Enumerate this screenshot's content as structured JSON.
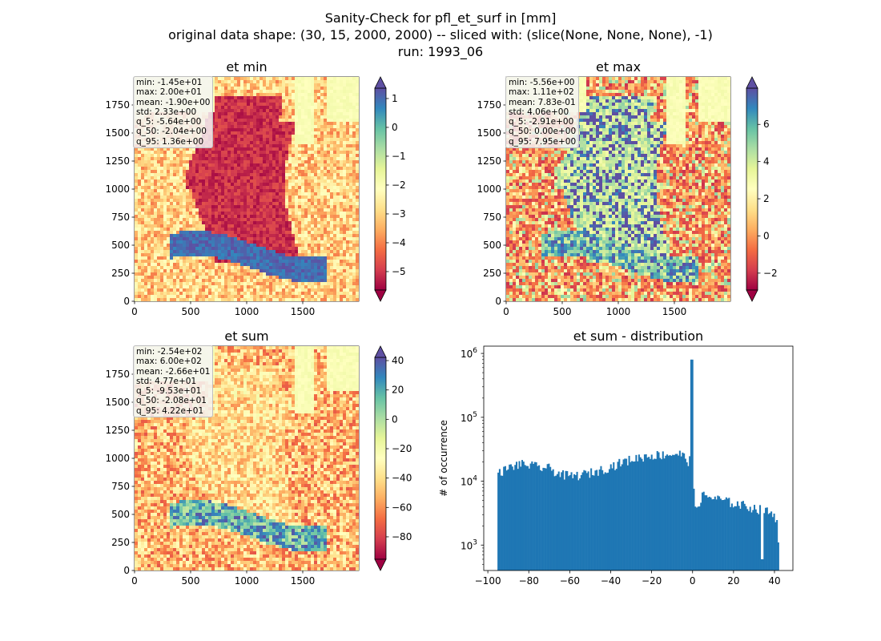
{
  "suptitle": {
    "line1": "Sanity-Check for pfl_et_surf in [mm]",
    "line2": "original data shape: (30, 15, 2000, 2000) -- sliced with: (slice(None, None, None), -1)",
    "line3": "run: 1993_06"
  },
  "panels": {
    "et_min": {
      "title": "et min",
      "x_ticks": [
        0,
        500,
        1000,
        1500
      ],
      "y_ticks": [
        0,
        250,
        500,
        750,
        1000,
        1250,
        1500,
        1750
      ],
      "colorbar_ticks": [
        1,
        0,
        -1,
        -2,
        -3,
        -4,
        -5
      ],
      "colorbar_range": [
        -5.64,
        1.36
      ],
      "colormap": "Spectral",
      "stats": [
        "min: -1.45e+01",
        "max: 2.00e+01",
        "mean: -1.90e+00",
        "std: 2.33e+00",
        "q_5: -5.64e+00",
        "q_50: -2.04e+00",
        "q_95: 1.36e+00"
      ]
    },
    "et_max": {
      "title": "et max",
      "x_ticks": [
        0,
        500,
        1000,
        1500
      ],
      "y_ticks": [
        0,
        250,
        500,
        750,
        1000,
        1250,
        1500,
        1750
      ],
      "colorbar_ticks": [
        6,
        4,
        2,
        0,
        -2
      ],
      "colorbar_range": [
        -2.91,
        7.95
      ],
      "colormap": "Spectral",
      "stats": [
        "min: -5.56e+00",
        "max: 1.11e+02",
        "mean: 7.83e-01",
        "std: 4.06e+00",
        "q_5: -2.91e+00",
        "q_50: 0.00e+00",
        "q_95: 7.95e+00"
      ]
    },
    "et_sum": {
      "title": "et sum",
      "x_ticks": [
        0,
        500,
        1000,
        1500
      ],
      "y_ticks": [
        0,
        250,
        500,
        750,
        1000,
        1250,
        1500,
        1750
      ],
      "colorbar_ticks": [
        40,
        20,
        0,
        -20,
        -40,
        -60,
        -80
      ],
      "colorbar_range": [
        -95.3,
        42.2
      ],
      "colormap": "Spectral",
      "stats": [
        "min: -2.54e+02",
        "max: 6.00e+02",
        "mean: -2.66e+01",
        "std: 4.77e+01",
        "q_5: -9.53e+01",
        "q_50: -2.08e+01",
        "q_95: 4.22e+01"
      ]
    }
  },
  "chart_data": {
    "type": "bar",
    "title": "et sum - distribution",
    "xlabel": "",
    "ylabel": "# of occurrence",
    "yscale": "log",
    "xlim": [
      -102,
      49
    ],
    "ylim": [
      400,
      1300000
    ],
    "x_ticks": [
      -100,
      -80,
      -60,
      -40,
      -20,
      0,
      20,
      40
    ],
    "y_ticks": [
      1000,
      10000,
      100000,
      1000000
    ],
    "y_tick_labels": [
      "10^3",
      "10^4",
      "10^5",
      "10^6"
    ],
    "color": "#1f77b4",
    "bin_range": [
      -95.3,
      42.2
    ],
    "anchors": [
      [
        -95.3,
        11500
      ],
      [
        -94,
        14000
      ],
      [
        -90,
        16000
      ],
      [
        -85,
        18500
      ],
      [
        -80,
        18000
      ],
      [
        -75,
        16500
      ],
      [
        -70,
        16000
      ],
      [
        -65,
        13000
      ],
      [
        -60,
        12000
      ],
      [
        -55,
        12500
      ],
      [
        -50,
        13500
      ],
      [
        -45,
        15000
      ],
      [
        -40,
        17000
      ],
      [
        -35,
        19500
      ],
      [
        -30,
        22000
      ],
      [
        -25,
        24000
      ],
      [
        -20,
        25500
      ],
      [
        -15,
        26000
      ],
      [
        -10,
        26500
      ],
      [
        -6,
        27000
      ],
      [
        -3,
        22000
      ],
      [
        -1.5,
        20000
      ],
      [
        -0.6,
        800000
      ],
      [
        0.4,
        9000
      ],
      [
        1,
        3500
      ],
      [
        5,
        6000
      ],
      [
        10,
        5500
      ],
      [
        15,
        5000
      ],
      [
        20,
        4500
      ],
      [
        25,
        4200
      ],
      [
        30,
        3800
      ],
      [
        35,
        3500
      ],
      [
        40,
        3000
      ],
      [
        42.2,
        2000
      ]
    ],
    "outliers": [
      [
        34,
        600
      ],
      [
        42,
        1100
      ]
    ]
  }
}
